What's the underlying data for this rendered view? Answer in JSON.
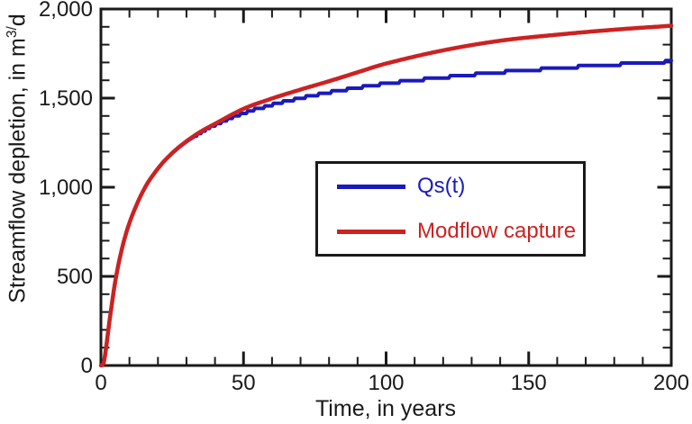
{
  "colors": {
    "background": "#ffffff",
    "axis": "#1a1a1a",
    "qst_blue": "#1a1abe",
    "modflow_red": "#cc2222"
  },
  "axes": {
    "xlabel": "Time, in years",
    "ylabel_prefix": "Streamflow depletion, in m",
    "ylabel_sup": "3/",
    "ylabel_suffix": "d",
    "x_tick_labels": [
      "0",
      "50",
      "100",
      "150",
      "200"
    ],
    "y_tick_labels": [
      "0",
      "500",
      "1,000",
      "1,500",
      "2,000"
    ]
  },
  "legend": {
    "items": [
      {
        "label": "Qs(t)",
        "color": "#1a1abe"
      },
      {
        "label": "Modflow capture",
        "color": "#cc2222"
      }
    ]
  },
  "chart_data": {
    "type": "line",
    "title": "",
    "xlabel": "Time, in years",
    "ylabel": "Streamflow depletion, in m3/d",
    "xlim": [
      0,
      200
    ],
    "ylim": [
      0,
      2000
    ],
    "x_major_ticks": [
      0,
      50,
      100,
      150,
      200
    ],
    "x_minor_tick_step": 10,
    "y_major_ticks": [
      0,
      500,
      1000,
      1500,
      2000
    ],
    "y_minor_tick_step": 100,
    "grid": false,
    "legend_position": "inside-center-right",
    "x": [
      0,
      1,
      2,
      3,
      5,
      7,
      10,
      15,
      20,
      25,
      30,
      35,
      40,
      50,
      60,
      70,
      80,
      90,
      100,
      120,
      140,
      160,
      180,
      200
    ],
    "series": [
      {
        "name": "Qs(t)",
        "color": "#1a1abe",
        "style": "stepped",
        "values": [
          0,
          16,
          120,
          250,
          468,
          630,
          800,
          985,
          1105,
          1190,
          1255,
          1305,
          1350,
          1415,
          1462,
          1500,
          1532,
          1558,
          1582,
          1616,
          1645,
          1668,
          1688,
          1706
        ]
      },
      {
        "name": "Modflow capture",
        "color": "#cc2222",
        "style": "smooth",
        "values": [
          0,
          16,
          120,
          250,
          468,
          630,
          800,
          985,
          1105,
          1192,
          1258,
          1312,
          1356,
          1440,
          1498,
          1548,
          1595,
          1645,
          1694,
          1768,
          1822,
          1856,
          1884,
          1906
        ]
      }
    ]
  }
}
